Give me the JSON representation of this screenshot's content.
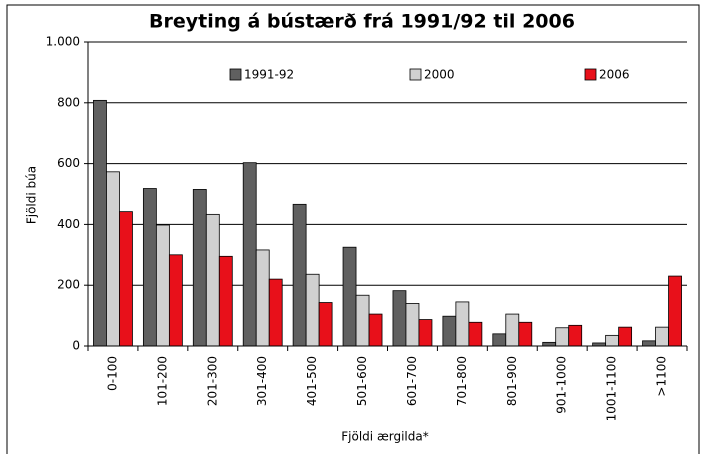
{
  "chart_data": {
    "type": "bar",
    "title": "Breyting á bústærð frá 1991/92 til 2006",
    "x_label": "Fjöldi ærgilda*",
    "y_label": "Fjöldi búa",
    "categories": [
      "0-100",
      "101-200",
      "201-300",
      "301-400",
      "401-500",
      "501-600",
      "601-700",
      "701-800",
      "801-900",
      "901-1000",
      "1001-1100",
      ">1100"
    ],
    "series": [
      {
        "name": "1991-92",
        "color": "#606060",
        "values": [
          808,
          518,
          515,
          603,
          466,
          325,
          182,
          98,
          40,
          12,
          10,
          17
        ]
      },
      {
        "name": "2000",
        "color": "#d0d0d0",
        "values": [
          573,
          398,
          433,
          316,
          236,
          167,
          140,
          145,
          105,
          60,
          35,
          62
        ]
      },
      {
        "name": "2006",
        "color": "#e8101a",
        "values": [
          442,
          300,
          295,
          220,
          143,
          105,
          87,
          78,
          78,
          68,
          62,
          230
        ]
      }
    ],
    "ylim": [
      0,
      1000
    ],
    "yticks": [
      0,
      200,
      400,
      600,
      800,
      {
        "value": 1000,
        "label": "1.000"
      }
    ],
    "grid": true
  }
}
